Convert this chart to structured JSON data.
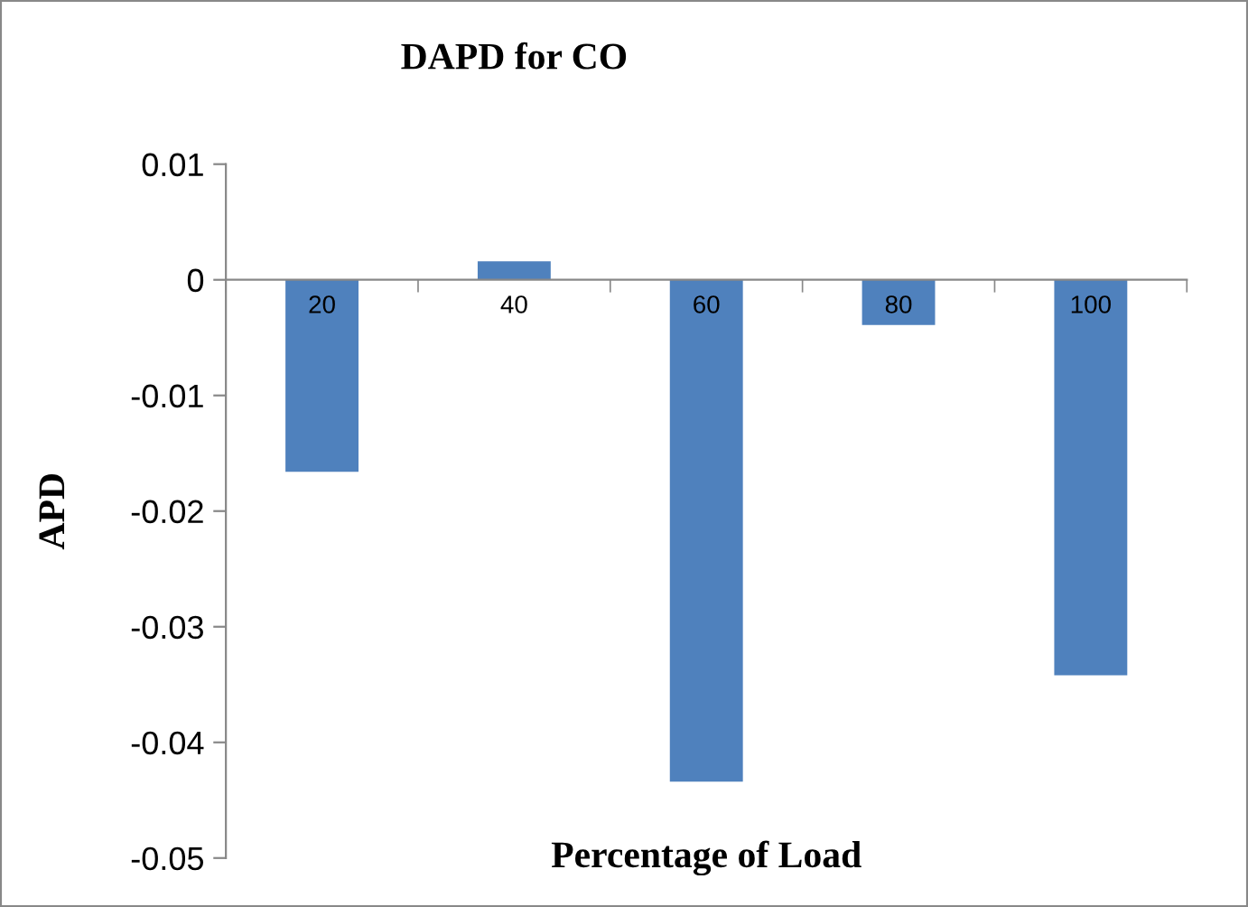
{
  "chart_data": {
    "type": "bar",
    "title": "DAPD for CO",
    "xlabel": "Percentage of Load",
    "ylabel": "APD",
    "categories": [
      "20",
      "40",
      "60",
      "80",
      "100"
    ],
    "values": [
      -0.0166,
      0.0016,
      -0.0434,
      -0.0039,
      -0.0342
    ],
    "color": "#4f81bd",
    "ylim": [
      -0.05,
      0.01
    ],
    "yticks": [
      -0.05,
      -0.04,
      -0.03,
      -0.02,
      -0.01,
      0,
      0.01
    ],
    "grid": false,
    "legend": false
  }
}
